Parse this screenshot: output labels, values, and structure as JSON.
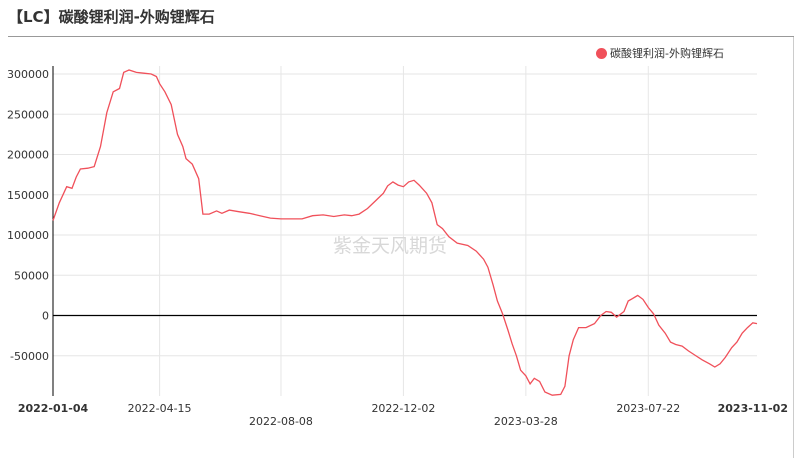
{
  "title": "【LC】碳酸锂利润-外购锂辉石",
  "watermark": "紫金天风期货",
  "colors": {
    "series": "#f0505a",
    "zero_line": "#000000",
    "grid": "#e6e6e6"
  },
  "chart_data": {
    "type": "line",
    "title": "【LC】碳酸锂利润-外购锂辉石",
    "legend_position": "top-right",
    "grid": true,
    "ylim": [
      -100000,
      310000
    ],
    "y_ticks": [
      "300000",
      "250000",
      "200000",
      "150000",
      "100000",
      "50000",
      "0",
      "-50000"
    ],
    "x_range": [
      "2022-01-04",
      "2023-11-02"
    ],
    "x_ticks": [
      {
        "label": "2022-01-04",
        "date": "2022-01-04",
        "row": 0,
        "bold": true
      },
      {
        "label": "2022-04-15",
        "date": "2022-04-15",
        "row": 0,
        "bold": false
      },
      {
        "label": "2022-08-08",
        "date": "2022-08-08",
        "row": 1,
        "bold": false
      },
      {
        "label": "2022-12-02",
        "date": "2022-12-02",
        "row": 0,
        "bold": false
      },
      {
        "label": "2023-03-28",
        "date": "2023-03-28",
        "row": 1,
        "bold": false
      },
      {
        "label": "2023-07-22",
        "date": "2023-07-22",
        "row": 0,
        "bold": false
      },
      {
        "label": "2023-11-02",
        "date": "2023-11-02",
        "row": 0,
        "bold": true
      }
    ],
    "series": [
      {
        "name": "碳酸锂利润-外购锂辉石",
        "points": [
          [
            "2022-01-04",
            118000
          ],
          [
            "2022-01-10",
            140000
          ],
          [
            "2022-01-17",
            160000
          ],
          [
            "2022-01-22",
            158000
          ],
          [
            "2022-01-26",
            172000
          ],
          [
            "2022-01-30",
            182000
          ],
          [
            "2022-02-06",
            183000
          ],
          [
            "2022-02-12",
            185000
          ],
          [
            "2022-02-18",
            210000
          ],
          [
            "2022-02-24",
            252000
          ],
          [
            "2022-03-02",
            278000
          ],
          [
            "2022-03-08",
            282000
          ],
          [
            "2022-03-12",
            302000
          ],
          [
            "2022-03-17",
            305000
          ],
          [
            "2022-03-24",
            302000
          ],
          [
            "2022-03-31",
            301000
          ],
          [
            "2022-04-07",
            300000
          ],
          [
            "2022-04-12",
            297000
          ],
          [
            "2022-04-15",
            288000
          ],
          [
            "2022-04-20",
            278000
          ],
          [
            "2022-04-26",
            262000
          ],
          [
            "2022-05-02",
            225000
          ],
          [
            "2022-05-07",
            210000
          ],
          [
            "2022-05-10",
            195000
          ],
          [
            "2022-05-16",
            188000
          ],
          [
            "2022-05-22",
            170000
          ],
          [
            "2022-05-26",
            126000
          ],
          [
            "2022-06-01",
            126000
          ],
          [
            "2022-06-08",
            130000
          ],
          [
            "2022-06-13",
            127000
          ],
          [
            "2022-06-20",
            131000
          ],
          [
            "2022-06-29",
            129000
          ],
          [
            "2022-07-09",
            127000
          ],
          [
            "2022-07-19",
            124000
          ],
          [
            "2022-07-29",
            121000
          ],
          [
            "2022-08-08",
            120000
          ],
          [
            "2022-08-18",
            120000
          ],
          [
            "2022-08-28",
            120000
          ],
          [
            "2022-09-07",
            124000
          ],
          [
            "2022-09-17",
            125000
          ],
          [
            "2022-09-27",
            123000
          ],
          [
            "2022-10-07",
            125000
          ],
          [
            "2022-10-14",
            124000
          ],
          [
            "2022-10-21",
            126000
          ],
          [
            "2022-10-29",
            133000
          ],
          [
            "2022-11-06",
            143000
          ],
          [
            "2022-11-13",
            152000
          ],
          [
            "2022-11-17",
            161000
          ],
          [
            "2022-11-22",
            166000
          ],
          [
            "2022-11-27",
            162000
          ],
          [
            "2022-12-02",
            160000
          ],
          [
            "2022-12-07",
            166000
          ],
          [
            "2022-12-12",
            168000
          ],
          [
            "2022-12-17",
            162000
          ],
          [
            "2022-12-24",
            152000
          ],
          [
            "2022-12-29",
            140000
          ],
          [
            "2023-01-03",
            113000
          ],
          [
            "2023-01-08",
            108000
          ],
          [
            "2023-01-14",
            98000
          ],
          [
            "2023-01-22",
            90000
          ],
          [
            "2023-02-01",
            87000
          ],
          [
            "2023-02-09",
            80000
          ],
          [
            "2023-02-16",
            70000
          ],
          [
            "2023-02-20",
            60000
          ],
          [
            "2023-02-25",
            38000
          ],
          [
            "2023-03-01",
            18000
          ],
          [
            "2023-03-06",
            2000
          ],
          [
            "2023-03-11",
            -18000
          ],
          [
            "2023-03-15",
            -35000
          ],
          [
            "2023-03-19",
            -50000
          ],
          [
            "2023-03-23",
            -68000
          ],
          [
            "2023-03-28",
            -75000
          ],
          [
            "2023-04-01",
            -85000
          ],
          [
            "2023-04-05",
            -78000
          ],
          [
            "2023-04-10",
            -82000
          ],
          [
            "2023-04-15",
            -95000
          ],
          [
            "2023-04-22",
            -99000
          ],
          [
            "2023-04-30",
            -98000
          ],
          [
            "2023-05-04",
            -88000
          ],
          [
            "2023-05-08",
            -50000
          ],
          [
            "2023-05-12",
            -30000
          ],
          [
            "2023-05-17",
            -15000
          ],
          [
            "2023-05-24",
            -15000
          ],
          [
            "2023-06-01",
            -10000
          ],
          [
            "2023-06-07",
            0
          ],
          [
            "2023-06-12",
            5000
          ],
          [
            "2023-06-17",
            4000
          ],
          [
            "2023-06-22",
            -2000
          ],
          [
            "2023-06-29",
            5000
          ],
          [
            "2023-07-03",
            18000
          ],
          [
            "2023-07-07",
            21000
          ],
          [
            "2023-07-12",
            25000
          ],
          [
            "2023-07-17",
            20000
          ],
          [
            "2023-07-22",
            10000
          ],
          [
            "2023-07-27",
            2000
          ],
          [
            "2023-08-01",
            -12000
          ],
          [
            "2023-08-07",
            -22000
          ],
          [
            "2023-08-12",
            -33000
          ],
          [
            "2023-08-17",
            -36000
          ],
          [
            "2023-08-23",
            -38000
          ],
          [
            "2023-08-29",
            -44000
          ],
          [
            "2023-09-04",
            -49000
          ],
          [
            "2023-09-11",
            -55000
          ],
          [
            "2023-09-18",
            -60000
          ],
          [
            "2023-09-23",
            -64000
          ],
          [
            "2023-09-28",
            -60000
          ],
          [
            "2023-10-03",
            -52000
          ],
          [
            "2023-10-09",
            -40000
          ],
          [
            "2023-10-14",
            -33000
          ],
          [
            "2023-10-19",
            -22000
          ],
          [
            "2023-10-24",
            -15000
          ],
          [
            "2023-10-29",
            -9000
          ],
          [
            "2023-11-02",
            -10000
          ]
        ]
      }
    ]
  }
}
